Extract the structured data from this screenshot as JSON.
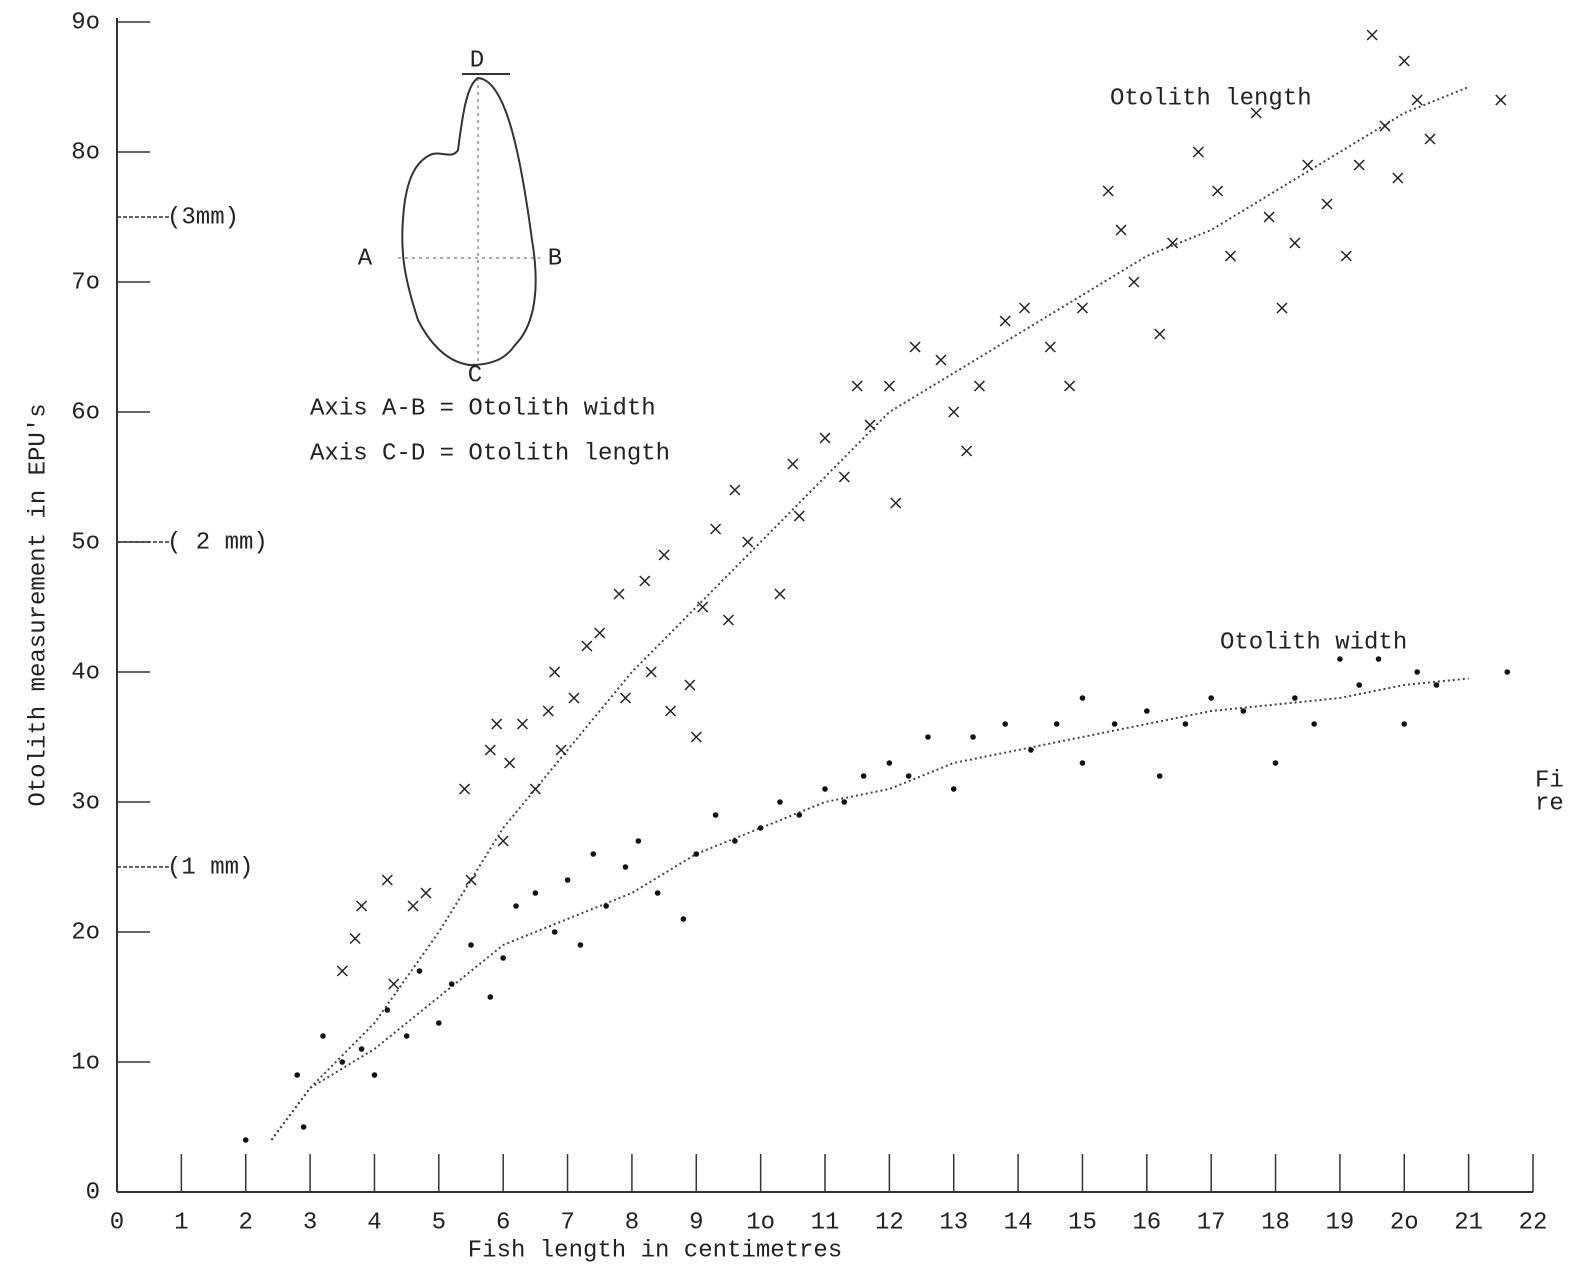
{
  "chart_data": {
    "type": "scatter",
    "xlabel": "Fish length in centimetres",
    "ylabel": "Otolith measurement in EPU's",
    "xlim": [
      0,
      22
    ],
    "ylim": [
      0,
      90
    ],
    "xticks": [
      0,
      1,
      2,
      3,
      4,
      5,
      6,
      7,
      8,
      9,
      {
        "value": 10,
        "label": "1o"
      },
      11,
      12,
      13,
      14,
      15,
      16,
      17,
      18,
      19,
      {
        "value": 20,
        "label": "2o"
      },
      21,
      22
    ],
    "yticks": [
      0,
      {
        "value": 10,
        "label": "1o"
      },
      {
        "value": 20,
        "label": "2o"
      },
      {
        "value": 30,
        "label": "3o"
      },
      {
        "value": 40,
        "label": "4o"
      },
      {
        "value": 50,
        "label": "5o"
      },
      {
        "value": 60,
        "label": "6o"
      },
      {
        "value": 70,
        "label": "7o"
      },
      {
        "value": 80,
        "label": "8o"
      },
      {
        "value": 90,
        "label": "9o"
      }
    ],
    "mm_ticks": [
      {
        "value": 25,
        "label": "(1 mm)"
      },
      {
        "value": 50,
        "label": "( 2 mm)"
      },
      {
        "value": 75,
        "label": "(3mm)"
      }
    ],
    "series": [
      {
        "name": "Otolith length",
        "marker": "x",
        "color": "#222222",
        "x": [
          3.5,
          3.7,
          3.8,
          4.2,
          4.3,
          4.6,
          4.8,
          5.4,
          5.5,
          5.8,
          5.9,
          6.0,
          6.1,
          6.3,
          6.5,
          6.7,
          6.8,
          6.9,
          7.1,
          7.3,
          7.5,
          7.8,
          7.9,
          8.2,
          8.3,
          8.5,
          8.6,
          8.9,
          9.0,
          9.1,
          9.3,
          9.5,
          9.6,
          9.8,
          10.3,
          10.5,
          10.6,
          11.0,
          11.3,
          11.5,
          11.7,
          12.0,
          12.1,
          12.4,
          12.8,
          13.0,
          13.2,
          13.4,
          13.8,
          14.1,
          14.5,
          14.8,
          15.0,
          15.4,
          15.6,
          15.8,
          16.2,
          16.4,
          16.8,
          17.1,
          17.3,
          17.7,
          17.9,
          18.1,
          18.3,
          18.5,
          18.8,
          19.1,
          19.3,
          19.5,
          19.7,
          19.9,
          20.0,
          20.2,
          20.4,
          21.5
        ],
        "y": [
          17,
          19.5,
          22,
          24,
          16,
          22,
          23,
          31,
          24,
          34,
          36,
          27,
          33,
          36,
          31,
          37,
          40,
          34,
          38,
          42,
          43,
          46,
          38,
          47,
          40,
          49,
          37,
          39,
          35,
          45,
          51,
          44,
          54,
          50,
          46,
          56,
          52,
          58,
          55,
          62,
          59,
          62,
          53,
          65,
          64,
          60,
          57,
          62,
          67,
          68,
          65,
          62,
          68,
          77,
          74,
          70,
          66,
          73,
          80,
          77,
          72,
          83,
          75,
          68,
          73,
          79,
          76,
          72,
          79,
          89,
          82,
          78,
          87,
          84,
          81,
          84
        ]
      },
      {
        "name": "Otolith width",
        "marker": "dot",
        "color": "#111111",
        "x": [
          2.0,
          2.8,
          2.9,
          3.2,
          3.5,
          3.8,
          4.0,
          4.2,
          4.5,
          4.7,
          5.0,
          5.2,
          5.5,
          5.8,
          6.0,
          6.2,
          6.5,
          6.8,
          7.0,
          7.2,
          7.4,
          7.6,
          7.9,
          8.1,
          8.4,
          8.8,
          9.0,
          9.3,
          9.6,
          10.0,
          10.3,
          10.6,
          11.0,
          11.3,
          11.6,
          12.0,
          12.3,
          12.6,
          13.0,
          13.3,
          13.8,
          14.2,
          14.6,
          15.0,
          15.0,
          15.5,
          16.0,
          16.2,
          16.6,
          17.0,
          17.5,
          18.0,
          18.3,
          18.6,
          19.0,
          19.3,
          19.6,
          20.0,
          20.2,
          20.5,
          21.6
        ],
        "y": [
          4,
          9,
          5,
          12,
          10,
          11,
          9,
          14,
          12,
          17,
          13,
          16,
          19,
          15,
          18,
          22,
          23,
          20,
          24,
          19,
          26,
          22,
          25,
          27,
          23,
          21,
          26,
          29,
          27,
          28,
          30,
          29,
          31,
          30,
          32,
          33,
          32,
          35,
          31,
          35,
          36,
          34,
          36,
          38,
          33,
          36,
          37,
          32,
          36,
          38,
          37,
          33,
          38,
          36,
          41,
          39,
          41,
          36,
          40,
          39,
          40
        ]
      }
    ],
    "trend_lines": [
      {
        "x": [
          2.4,
          3,
          4,
          5,
          6,
          7,
          8,
          9,
          10,
          11,
          12,
          13,
          14,
          15,
          16,
          17,
          18,
          19,
          20,
          21
        ],
        "y": [
          4,
          8,
          13,
          20,
          28,
          34,
          40,
          45,
          50,
          55,
          60,
          63,
          66,
          69,
          72,
          74,
          77,
          80,
          83,
          85
        ]
      },
      {
        "x": [
          2.4,
          3,
          4,
          5,
          6,
          7,
          8,
          9,
          10,
          11,
          12,
          13,
          14,
          15,
          16,
          17,
          18,
          19,
          20,
          21
        ],
        "y": [
          4,
          8,
          11,
          15,
          19,
          21,
          23,
          26,
          28,
          30,
          31,
          33,
          34,
          35,
          36,
          37,
          37.5,
          38,
          39,
          39.5
        ]
      }
    ],
    "inset": {
      "labels": [
        "A",
        "B",
        "C",
        "D"
      ],
      "key": [
        "Axis A-B = Otolith width",
        "Axis C-D = Otolith length"
      ]
    },
    "cut_text": [
      "Fi",
      "re"
    ]
  }
}
